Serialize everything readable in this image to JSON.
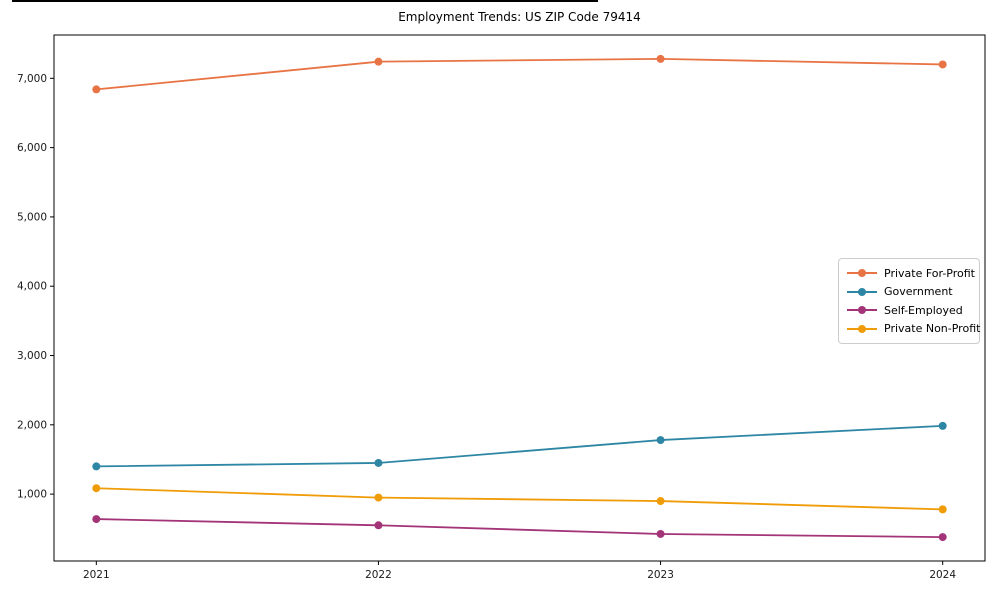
{
  "figure": {
    "title": "Employment Trends: US ZIP Code 79414"
  },
  "chart_data": {
    "type": "line",
    "title": "Employment Trends: US ZIP Code 79414",
    "categories": [
      "2021",
      "2022",
      "2023",
      "2024"
    ],
    "series": [
      {
        "name": "Private For-Profit",
        "color": "#e87446",
        "values": [
          6840,
          7240,
          7280,
          7200
        ]
      },
      {
        "name": "Government",
        "color": "#2e86a5",
        "values": [
          1400,
          1450,
          1780,
          1985
        ]
      },
      {
        "name": "Self-Employed",
        "color": "#a33478",
        "values": [
          640,
          550,
          425,
          380
        ]
      },
      {
        "name": "Private Non-Profit",
        "color": "#f09c08",
        "values": [
          1085,
          950,
          900,
          780
        ]
      }
    ],
    "xlabel": "",
    "ylabel": "",
    "ylim": [
      35,
      7625
    ],
    "yticks": [
      1000,
      2000,
      3000,
      4000,
      5000,
      6000,
      7000
    ],
    "ytick_format": "comma",
    "grid": false,
    "legend_position": "center-right",
    "marker": "circle",
    "line_width": 1.8,
    "marker_radius": 4,
    "axis_color": "#000000",
    "tick_label_color": "#1a1a1a"
  }
}
